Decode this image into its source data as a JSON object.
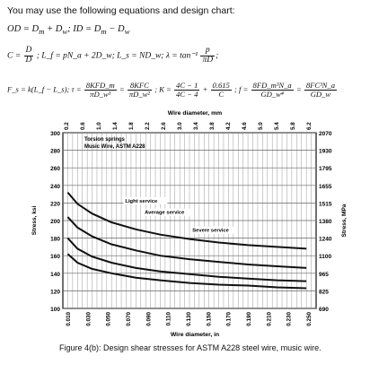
{
  "intro": "You may use the following equations and design chart:",
  "equations": {
    "e1": "OD = D_m + D_w;  ID = D_m − D_w",
    "e1a": "OD = D",
    "e1b": " + D",
    "e1c": ";  ID = D",
    "e1d": " − D",
    "e2_pre": "C = ",
    "e2_frac_num": "D",
    "e2_frac_den": "D",
    "e2_mid": "; L_f = pN_a + 2D_w; L_s = ND_w; λ = tan⁻¹",
    "e2_frac2_num": "p",
    "e2_frac2_den": "πD",
    "e3_pre": "F_s = k(L_f − L_s);  τ =",
    "e3_f1_num": "8KFD_m",
    "e3_f1_den": "πD_w³",
    "e3_eq": "=",
    "e3_f2_num": "8KFC",
    "e3_f2_den": "πD_w²",
    "e3_K": "; K =",
    "e3_f3_num": "4C − 1",
    "e3_f3_den": "4C − 4",
    "e3_plus": "+",
    "e3_f4_num": "0.615",
    "e3_f4_den": "C",
    "e3_f": "; f =",
    "e3_f5_num": "8FD_m³N_a",
    "e3_f5_den": "GD_w⁴",
    "e3_eq2": "=",
    "e3_f6_num": "8FC³N_a",
    "e3_f6_den": "GD_w"
  },
  "chart_data": {
    "type": "line",
    "title": "",
    "top_axis_label": "Wire diameter, mm",
    "top_ticks": [
      "0.2",
      "0.6",
      "1.0",
      "1.4",
      "1.8",
      "2.2",
      "2.6",
      "3.0",
      "3.4",
      "3.8",
      "4.2",
      "4.6",
      "5.0",
      "5.4",
      "5.8",
      "6.2"
    ],
    "bottom_axis_label": "Wire diameter, in",
    "bottom_ticks": [
      "0.010",
      "0.030",
      "0.050",
      "0.070",
      "0.090",
      "0.110",
      "0.130",
      "0.150",
      "0.170",
      "0.190",
      "0.210",
      "0.230",
      "0.250"
    ],
    "left_axis_label": "Stress, ksi",
    "left_ticks": [
      "100",
      "120",
      "140",
      "160",
      "180",
      "200",
      "220",
      "240",
      "260",
      "280",
      "300"
    ],
    "right_axis_label": "Stress, MPa",
    "right_ticks": [
      "690",
      "825",
      "965",
      "1100",
      "1240",
      "1380",
      "1515",
      "1655",
      "1795",
      "1930",
      "2070"
    ],
    "xlim": [
      0.0,
      0.26
    ],
    "ylim": [
      100,
      300
    ],
    "legend_note_1": "Torsion springs",
    "legend_note_2": "Music Wire, ASTM A228",
    "series": [
      {
        "name": "Light service",
        "x": [
          0.005,
          0.015,
          0.03,
          0.05,
          0.075,
          0.1,
          0.13,
          0.16,
          0.19,
          0.22,
          0.25
        ],
        "y": [
          232,
          219,
          208,
          198,
          190,
          184,
          179,
          175,
          172,
          170,
          168
        ]
      },
      {
        "name": "Average service",
        "x": [
          0.005,
          0.015,
          0.03,
          0.05,
          0.075,
          0.1,
          0.13,
          0.16,
          0.19,
          0.22,
          0.25
        ],
        "y": [
          204,
          192,
          182,
          173,
          166,
          160,
          156,
          153,
          150,
          148,
          146
        ]
      },
      {
        "name": "Severe service",
        "x": [
          0.005,
          0.015,
          0.03,
          0.05,
          0.075,
          0.1,
          0.13,
          0.16,
          0.19,
          0.22,
          0.25
        ],
        "y": [
          180,
          168,
          159,
          152,
          146,
          142,
          139,
          136,
          134,
          132,
          131
        ]
      },
      {
        "name": "",
        "x": [
          0.005,
          0.015,
          0.03,
          0.05,
          0.075,
          0.1,
          0.13,
          0.16,
          0.19,
          0.22,
          0.25
        ],
        "y": [
          162,
          152,
          145,
          140,
          135,
          132,
          129,
          127,
          126,
          124,
          123
        ]
      }
    ],
    "grid": true,
    "line_color": "#111111"
  },
  "caption": "Figure 4(b): Design shear stresses for ASTM A228 steel wire, music wire."
}
